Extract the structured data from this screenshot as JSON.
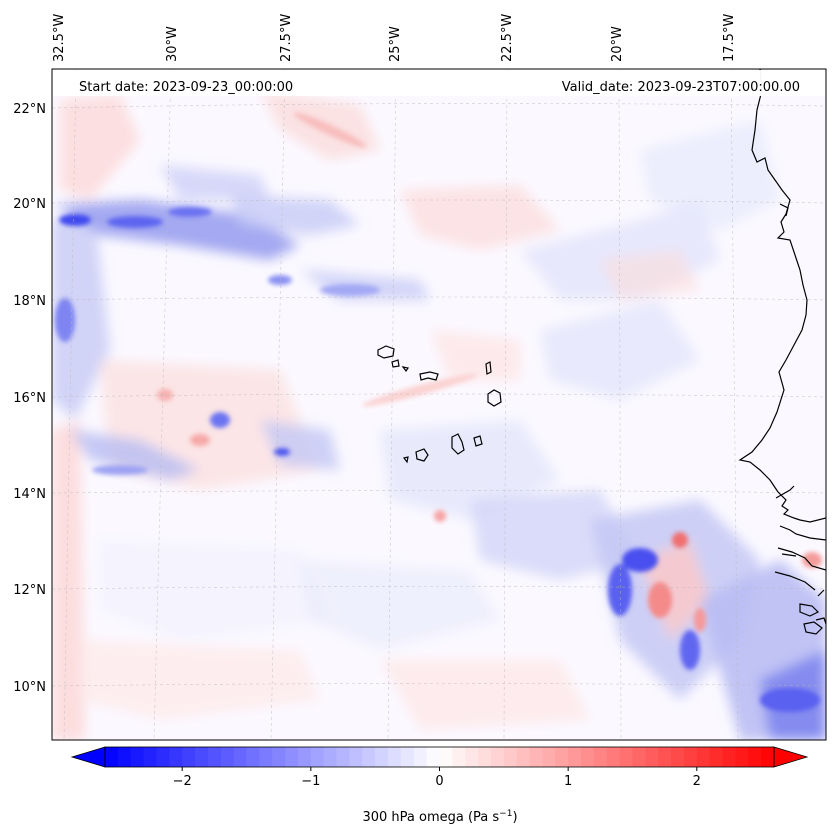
{
  "map": {
    "start_label": "Start date: 2023-09-23_00:00:00",
    "valid_label": "Valid_date: 2023-09-23T07:00:00.00",
    "lon_labels": [
      {
        "lon": -32.5,
        "text": "32.5°W"
      },
      {
        "lon": -30.0,
        "text": "30°W"
      },
      {
        "lon": -27.5,
        "text": "27.5°W"
      },
      {
        "lon": -25.0,
        "text": "25°W"
      },
      {
        "lon": -22.5,
        "text": "22.5°W"
      },
      {
        "lon": -20.0,
        "text": "20°W"
      },
      {
        "lon": -17.5,
        "text": "17.5°W"
      }
    ],
    "lat_labels": [
      {
        "lat": 22,
        "text": "22°N"
      },
      {
        "lat": 20,
        "text": "20°N"
      },
      {
        "lat": 18,
        "text": "18°N"
      },
      {
        "lat": 16,
        "text": "16°N"
      },
      {
        "lat": 14,
        "text": "14°N"
      },
      {
        "lat": 12,
        "text": "12°N"
      },
      {
        "lat": 10,
        "text": "10°N"
      }
    ],
    "extent": {
      "lon_min": -32.9,
      "lon_max": -16.2,
      "lat_min": 8.9,
      "lat_max": 22.8
    }
  },
  "colorbar": {
    "label": "300 hPa omega (Pa s",
    "label_sup": "−1",
    "label_close": ")",
    "range": [
      -2.6,
      2.6
    ],
    "extend": "both",
    "colormap": "bwr",
    "ticks": [
      {
        "value": -2,
        "text": "−2"
      },
      {
        "value": -1,
        "text": "−1"
      },
      {
        "value": 0,
        "text": "0"
      },
      {
        "value": 1,
        "text": "1"
      },
      {
        "value": 2,
        "text": "2"
      }
    ]
  },
  "colors": {
    "negative": "#0000ff",
    "neutral": "#ffffff",
    "positive": "#ff0000",
    "coast": "#000000"
  }
}
